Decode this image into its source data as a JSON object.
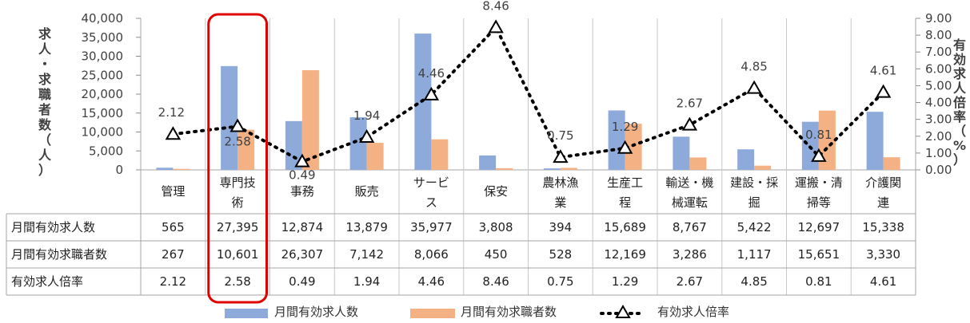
{
  "chart_data": {
    "type": "bar",
    "categories": [
      [
        "管理"
      ],
      [
        "専門技",
        "術"
      ],
      [
        "事務"
      ],
      [
        "販売"
      ],
      [
        "サービ",
        "ス"
      ],
      [
        "保安"
      ],
      [
        "農林漁",
        "業"
      ],
      [
        "生産工",
        "程"
      ],
      [
        "輸送・機",
        "械運転"
      ],
      [
        "建設・採",
        "掘"
      ],
      [
        "運搬・清",
        "掃等"
      ],
      [
        "介護関",
        "連"
      ]
    ],
    "series": [
      {
        "name": "月間有効求人数",
        "type": "bar",
        "color": "#8EAADB",
        "values": [
          565,
          27395,
          12874,
          13879,
          35977,
          3808,
          394,
          15689,
          8767,
          5422,
          12697,
          15338
        ],
        "display": [
          "565",
          "27,395",
          "12,874",
          "13,879",
          "35,977",
          "3,808",
          "394",
          "15,689",
          "8,767",
          "5,422",
          "12,697",
          "15,338"
        ]
      },
      {
        "name": "月間有効求職者数",
        "type": "bar",
        "color": "#F4B183",
        "values": [
          267,
          10601,
          26307,
          7142,
          8066,
          450,
          528,
          12169,
          3286,
          1117,
          15651,
          3330
        ],
        "display": [
          "267",
          "10,601",
          "26,307",
          "7,142",
          "8,066",
          "450",
          "528",
          "12,169",
          "3,286",
          "1,117",
          "15,651",
          "3,330"
        ]
      },
      {
        "name": "有効求人倍率",
        "type": "line",
        "color": "#000000",
        "values": [
          2.12,
          2.58,
          0.49,
          1.94,
          4.46,
          8.46,
          0.75,
          1.29,
          2.67,
          4.85,
          0.81,
          4.61
        ],
        "display": [
          "2.12",
          "2.58",
          "0.49",
          "1.94",
          "4.46",
          "8.46",
          "0.75",
          "1.29",
          "2.67",
          "4.85",
          "0.81",
          "4.61"
        ]
      }
    ],
    "left_axis": {
      "label_chars": [
        "求",
        "人",
        "・",
        "求",
        "職",
        "者",
        "数",
        "（",
        "人",
        "）"
      ],
      "range": [
        0,
        40000
      ],
      "ticks": [
        "0",
        "5,000",
        "10,000",
        "15,000",
        "20,000",
        "25,000",
        "30,000",
        "35,000",
        "40,000"
      ]
    },
    "right_axis": {
      "label_chars": [
        "有",
        "効",
        "求",
        "人",
        "倍",
        "率",
        "（",
        "%",
        "）"
      ],
      "range": [
        0,
        9
      ],
      "ticks": [
        "0.00",
        "1.00",
        "2.00",
        "3.00",
        "4.00",
        "5.00",
        "6.00",
        "7.00",
        "8.00",
        "9.00"
      ]
    },
    "table_rows": [
      "月間有効求人数",
      "月間有効求職者数",
      "有効求人倍率"
    ],
    "highlight": {
      "category": "専門技術",
      "color": "#E00000"
    },
    "grid": false,
    "legend_position": "bottom"
  }
}
